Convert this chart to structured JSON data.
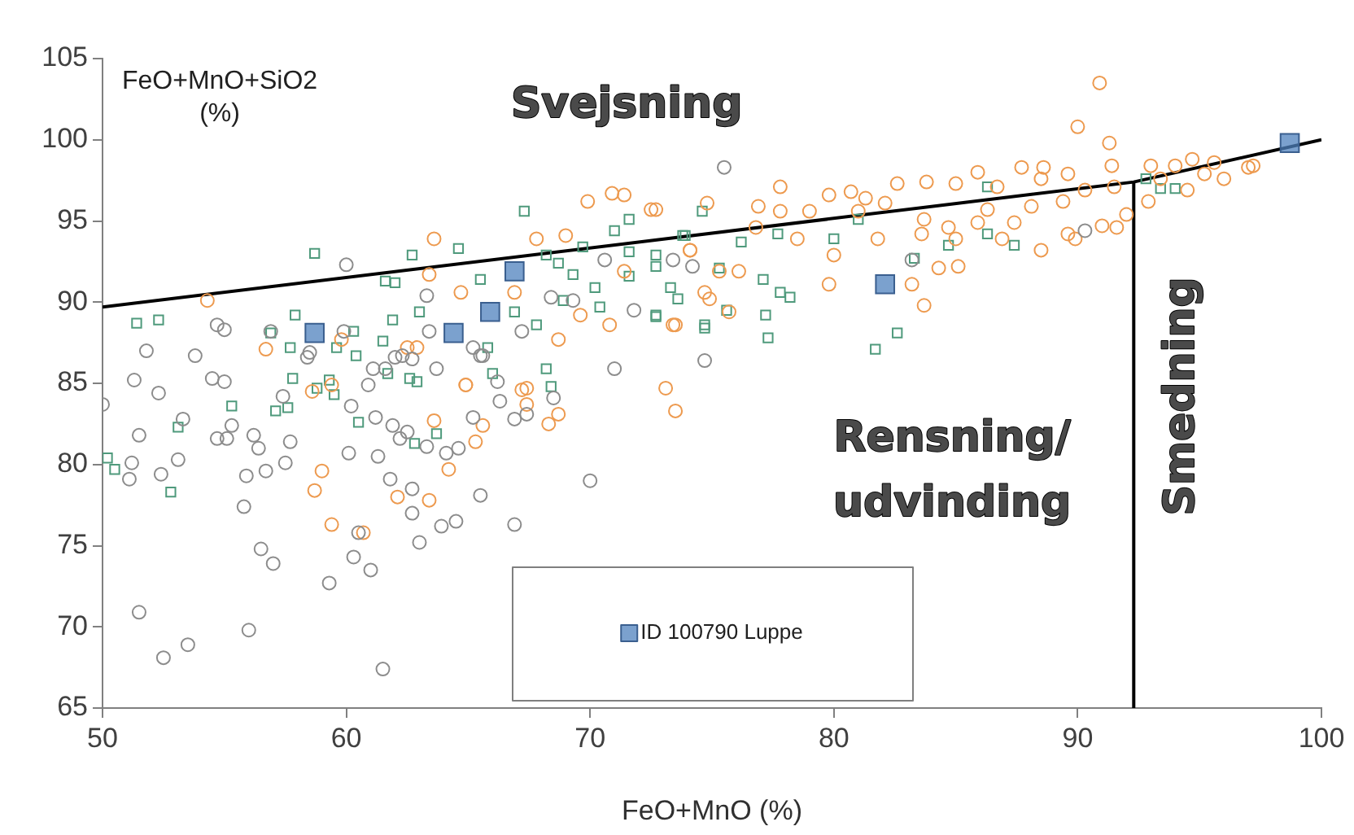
{
  "chart_data": {
    "type": "scatter",
    "xlabel": "FeO+MnO (%)",
    "ylabel": "FeO+MnO+SiO2 (%)",
    "xlim": [
      50,
      100
    ],
    "xticks": [
      50,
      60,
      70,
      80,
      90,
      100
    ],
    "ylim": [
      65,
      105
    ],
    "yticks": [
      65,
      70,
      75,
      80,
      85,
      90,
      95,
      100,
      105
    ],
    "grid": false,
    "legend": "bottom",
    "annotations": [
      "Svejsning",
      "Rensning/\nudvinding",
      "Smedning"
    ],
    "series": [
      {
        "color": "#8c8c8c",
        "marker": "circle",
        "x": [
          50.0,
          51.3,
          51.8,
          52.3,
          51.5,
          51.2,
          51.1,
          52.4,
          53.1,
          53.3,
          53.8,
          54.5,
          55.0,
          54.7,
          55.1,
          55.3,
          55.8,
          55.9,
          56.2,
          56.4,
          56.5,
          57.0,
          56.7,
          57.5,
          57.7,
          57.4,
          58.4,
          59.3,
          60.1,
          60.3,
          61.0,
          60.5,
          60.2,
          61.2,
          61.3,
          61.8,
          61.5,
          61.9,
          62.2,
          62.5,
          62.7,
          62.7,
          63.0,
          63.3,
          63.9,
          64.1,
          64.5,
          64.6,
          65.2,
          65.5,
          66.3,
          66.9,
          66.9,
          67.4,
          68.5,
          70.0,
          71.0,
          74.7,
          51.5,
          52.5,
          53.5,
          56.0,
          60.9,
          61.6,
          62.3,
          62.7,
          63.7,
          65.5,
          66.2,
          60.0,
          75.5,
          68.4,
          70.6,
          71.8,
          73.4,
          74.2,
          54.7,
          55.0,
          56.9,
          58.5,
          59.9,
          61.1,
          62.0,
          63.4,
          63.3,
          65.2,
          65.6,
          67.2,
          69.3,
          83.2,
          90.3
        ],
        "values": [
          83.7,
          85.2,
          87.0,
          84.4,
          81.8,
          80.1,
          79.1,
          79.4,
          80.3,
          82.8,
          86.7,
          85.3,
          85.1,
          81.6,
          81.6,
          82.4,
          77.4,
          79.3,
          81.8,
          81.0,
          74.8,
          73.9,
          79.6,
          80.1,
          81.4,
          84.2,
          86.6,
          72.7,
          80.7,
          74.3,
          73.5,
          75.8,
          83.6,
          82.9,
          80.5,
          79.1,
          67.4,
          82.4,
          81.6,
          82.0,
          78.5,
          77.0,
          75.2,
          81.1,
          76.2,
          80.7,
          76.5,
          81.0,
          82.9,
          78.1,
          83.9,
          76.3,
          82.8,
          83.1,
          84.1,
          79.0,
          85.9,
          86.4,
          70.9,
          68.1,
          68.9,
          69.8,
          84.9,
          85.9,
          86.7,
          86.5,
          85.9,
          86.7,
          85.1,
          92.3,
          98.3,
          90.3,
          92.6,
          89.5,
          92.6,
          92.2,
          88.6,
          88.3,
          88.2,
          86.9,
          88.2,
          85.9,
          86.6,
          88.2,
          90.4,
          87.2,
          86.7,
          88.2,
          90.1,
          92.6,
          94.4
        ]
      },
      {
        "color": "#ed9a4f",
        "marker": "circle",
        "x": [
          90.9,
          90.0,
          91.3,
          77.8,
          79.8,
          80.7,
          81.3,
          82.6,
          83.8,
          85.0,
          85.9,
          87.7,
          88.6,
          89.6,
          91.4,
          93.0,
          94.0,
          94.7,
          95.6,
          97.2,
          96.0,
          94.5,
          92.9,
          92.0,
          91.0,
          89.6,
          88.5,
          87.4,
          85.9,
          84.7,
          83.7,
          83.6,
          84.3,
          85.1,
          83.2,
          83.7,
          81.8,
          81.0,
          80.0,
          79.8,
          78.5,
          77.8,
          76.9,
          76.8,
          76.1,
          75.3,
          74.7,
          75.7,
          73.4,
          73.1,
          72.7,
          74.1,
          79.0,
          82.1,
          86.3,
          88.1,
          89.4,
          90.3,
          91.5,
          93.4,
          95.2,
          97.0,
          91.6,
          89.9,
          86.9,
          85.0,
          88.5,
          86.7,
          70.9,
          71.4,
          69.9,
          72.5,
          74.8,
          63.6,
          67.8,
          69.0,
          71.4,
          74.1,
          74.9,
          73.5,
          70.8,
          69.6,
          68.7,
          66.9,
          64.7,
          63.4,
          54.3,
          56.7,
          59.8,
          62.9,
          64.9,
          67.4,
          58.6,
          59.4,
          59.0,
          58.7,
          59.4,
          60.7,
          62.1,
          63.4,
          63.6,
          64.2,
          65.6,
          65.3,
          64.9,
          67.4,
          67.2,
          68.3,
          68.7,
          73.5,
          62.5
        ],
        "values": [
          103.5,
          100.8,
          99.8,
          97.1,
          96.6,
          96.8,
          96.4,
          97.3,
          97.4,
          97.3,
          98.0,
          98.3,
          98.3,
          97.9,
          98.4,
          98.4,
          98.4,
          98.8,
          98.6,
          98.4,
          97.6,
          96.9,
          96.2,
          95.4,
          94.7,
          94.2,
          93.2,
          94.9,
          94.9,
          94.6,
          95.1,
          94.2,
          92.1,
          92.2,
          91.1,
          89.8,
          93.9,
          95.6,
          92.9,
          91.1,
          93.9,
          95.6,
          95.9,
          94.6,
          91.9,
          91.9,
          90.6,
          89.4,
          88.6,
          84.7,
          95.7,
          93.2,
          95.6,
          96.1,
          95.7,
          95.9,
          96.2,
          96.9,
          97.1,
          97.6,
          97.9,
          98.3,
          94.6,
          93.9,
          93.9,
          93.9,
          97.6,
          97.1,
          96.7,
          96.6,
          96.2,
          95.7,
          96.1,
          93.9,
          93.9,
          94.1,
          91.9,
          93.2,
          90.2,
          88.6,
          88.6,
          89.2,
          87.7,
          90.6,
          90.6,
          91.7,
          90.1,
          87.1,
          87.7,
          87.2,
          84.9,
          84.7,
          84.5,
          84.9,
          79.6,
          78.4,
          76.3,
          75.8,
          78.0,
          77.8,
          82.7,
          79.7,
          82.4,
          81.4,
          84.9,
          83.7,
          84.6,
          82.5,
          83.1,
          83.3,
          87.2
        ]
      },
      {
        "color": "#4f9a7c",
        "marker": "square",
        "x": [
          58.7,
          67.3,
          71.6,
          71.0,
          74.6,
          62.7,
          64.6,
          65.5,
          61.6,
          62.0,
          68.2,
          68.7,
          69.3,
          69.7,
          70.2,
          71.6,
          72.7,
          73.8,
          73.3,
          72.7,
          73.6,
          74.7,
          72.7,
          70.4,
          68.9,
          67.8,
          66.9,
          65.8,
          63.0,
          61.9,
          61.5,
          60.3,
          59.6,
          60.4,
          57.9,
          57.7,
          56.9,
          51.4,
          52.3,
          57.8,
          59.3,
          61.7,
          62.9,
          66.0,
          68.2,
          71.6,
          73.9,
          76.2,
          77.7,
          80.0,
          81.0,
          83.3,
          84.7,
          86.3,
          87.4,
          86.3,
          93.4,
          92.8,
          94.0,
          75.3,
          77.1,
          77.8,
          78.2,
          75.6,
          77.2,
          74.7,
          77.3,
          81.7,
          82.6,
          72.7,
          50.2,
          50.5,
          52.8,
          53.1,
          55.3,
          57.1,
          57.6,
          58.8,
          59.5,
          60.5,
          62.6,
          62.8,
          63.7,
          68.4
        ],
        "values": [
          93.0,
          95.6,
          95.1,
          94.4,
          95.6,
          92.9,
          93.3,
          91.4,
          91.3,
          91.2,
          92.9,
          92.4,
          91.7,
          93.4,
          90.9,
          93.1,
          92.9,
          94.1,
          90.9,
          92.2,
          90.2,
          88.6,
          89.2,
          89.7,
          90.1,
          88.6,
          89.4,
          87.2,
          89.4,
          88.9,
          87.6,
          88.2,
          87.2,
          86.7,
          89.2,
          87.2,
          88.1,
          88.7,
          88.9,
          85.3,
          85.2,
          85.6,
          85.1,
          85.6,
          85.9,
          91.6,
          94.1,
          93.7,
          94.2,
          93.9,
          95.1,
          92.7,
          93.5,
          94.2,
          93.5,
          97.1,
          97.0,
          97.6,
          97.0,
          92.1,
          91.4,
          90.6,
          90.3,
          89.5,
          89.2,
          88.4,
          87.8,
          87.1,
          88.1,
          89.1,
          80.4,
          79.7,
          78.3,
          82.3,
          83.6,
          83.3,
          83.5,
          84.7,
          84.3,
          82.6,
          85.3,
          81.3,
          81.9,
          84.8
        ]
      },
      {
        "name": "ID 100790 Luppe",
        "color": "#4f81bd",
        "marker": "square",
        "x": [
          58.7,
          64.4,
          65.9,
          66.9,
          82.1,
          98.7
        ],
        "values": [
          88.1,
          88.1,
          89.4,
          91.9,
          91.1,
          99.8
        ]
      },
      {
        "type": "line",
        "color": "#000000",
        "marker": "none",
        "x": [
          50,
          92.3,
          100
        ],
        "values": [
          89.7,
          97.4,
          100
        ]
      },
      {
        "type": "line",
        "color": "#000000",
        "marker": "none",
        "x": [
          92.3,
          92.3
        ],
        "values": [
          65,
          97.4
        ]
      }
    ]
  }
}
